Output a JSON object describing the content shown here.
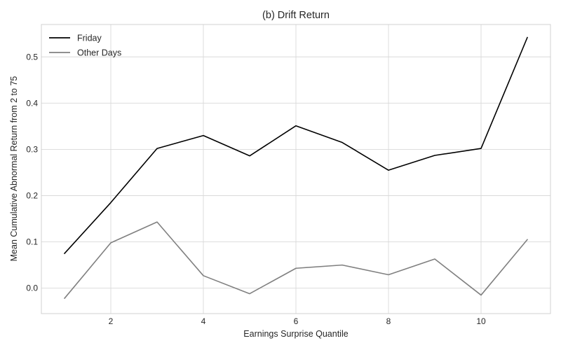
{
  "chart_data": {
    "type": "line",
    "title": "(b) Drift Return",
    "xlabel": "Earnings Surprise Quantile",
    "ylabel": "Mean Cumulative Abnormal Return from 2 to 75",
    "x": [
      1,
      2,
      3,
      4,
      5,
      6,
      7,
      8,
      9,
      10,
      11
    ],
    "xlim": [
      0.5,
      11.5
    ],
    "ylim": [
      -0.055,
      0.57
    ],
    "xticks": [
      2,
      4,
      6,
      8,
      10
    ],
    "yticks": [
      0.0,
      0.1,
      0.2,
      0.3,
      0.4,
      0.5
    ],
    "grid": true,
    "legend_position": "top-left",
    "series": [
      {
        "name": "Friday",
        "color": "#000000",
        "values": [
          0.075,
          0.185,
          0.302,
          0.33,
          0.286,
          0.351,
          0.315,
          0.255,
          0.287,
          0.302,
          0.542
        ]
      },
      {
        "name": "Other Days",
        "color": "#808080",
        "values": [
          -0.022,
          0.098,
          0.143,
          0.027,
          -0.012,
          0.043,
          0.05,
          0.029,
          0.063,
          -0.015,
          0.105
        ]
      }
    ]
  }
}
